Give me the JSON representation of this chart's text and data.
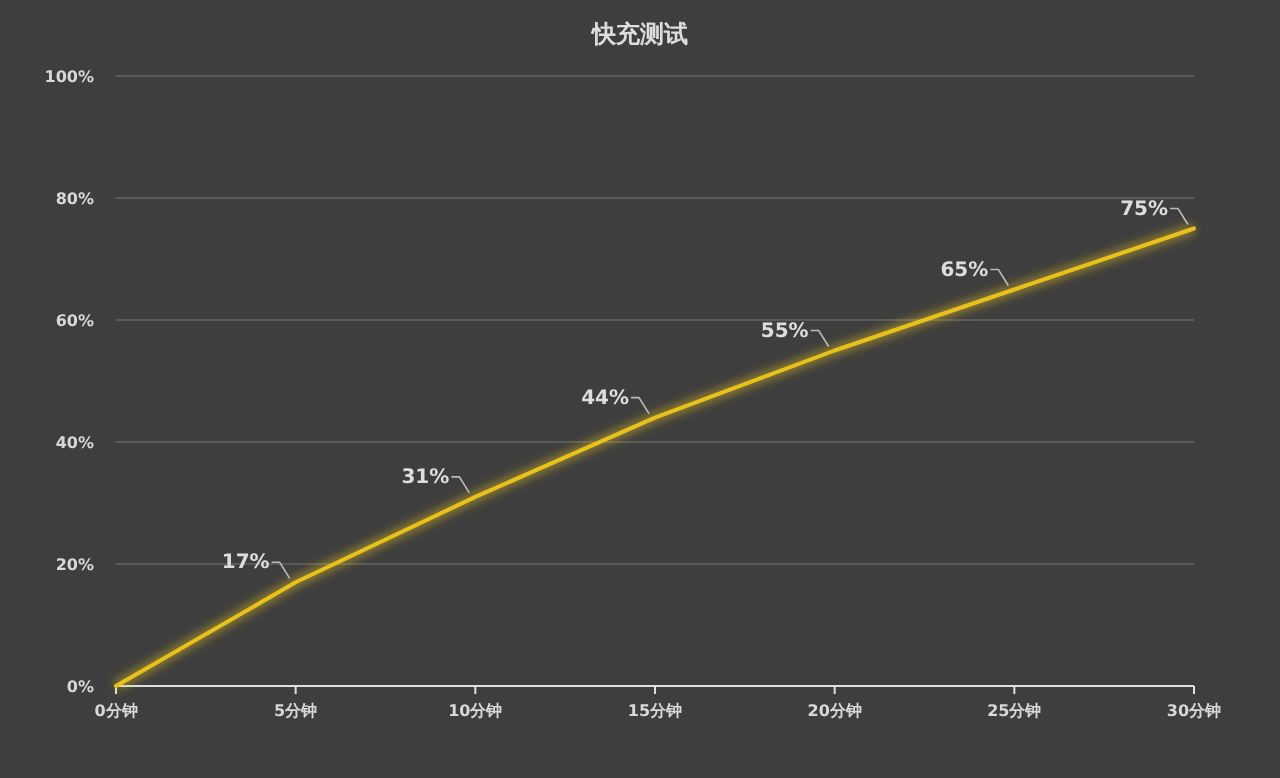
{
  "chart_data": {
    "type": "line",
    "title": "快充测试",
    "categories": [
      "0分钟",
      "5分钟",
      "10分钟",
      "15分钟",
      "20分钟",
      "25分钟",
      "30分钟"
    ],
    "series": [
      {
        "color": "#e8c21a",
        "values": [
          0,
          17,
          31,
          44,
          55,
          65,
          75
        ],
        "value_labels": [
          null,
          "17%",
          "31%",
          "44%",
          "55%",
          "65%",
          "75%"
        ]
      }
    ],
    "ylim": [
      0,
      100
    ],
    "yticks": [
      {
        "value": 0,
        "label": "0%"
      },
      {
        "value": 20,
        "label": "20%"
      },
      {
        "value": 40,
        "label": "40%"
      },
      {
        "value": 60,
        "label": "60%"
      },
      {
        "value": 80,
        "label": "80%"
      },
      {
        "value": 100,
        "label": "100%"
      }
    ],
    "grid": "y",
    "marker": "none",
    "line_style": "solid"
  }
}
